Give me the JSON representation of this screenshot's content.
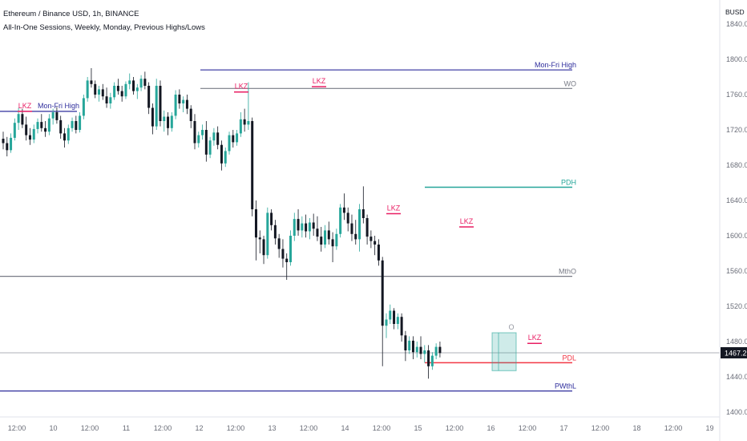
{
  "header": {
    "title": "Ethereum / Binance USD, 1h, BINANCE",
    "indicator": "All-In-One Sessions, Weekly, Monday, Previous Highs/Lows"
  },
  "axis": {
    "currency": "BUSD"
  },
  "colors": {
    "up": "#26a69a",
    "down": "#131722",
    "lkz": "#e91e63",
    "pdh": "#26a69a",
    "pdl": "#f23645",
    "purple": "#2e2d9c",
    "gray": "#787b86"
  },
  "chart_data": {
    "type": "candlestick",
    "ylim": [
      1400,
      1840
    ],
    "y_ticks": [
      1400,
      1440,
      1480,
      1520,
      1560,
      1600,
      1640,
      1680,
      1720,
      1760,
      1800,
      1840
    ],
    "x_ticks": [
      "12:00",
      "10",
      "12:00",
      "11",
      "12:00",
      "12",
      "12:00",
      "13",
      "12:00",
      "14",
      "12:00",
      "15",
      "12:00",
      "16",
      "12:00",
      "17",
      "12:00",
      "18",
      "12:00",
      "19"
    ],
    "current_price": 1467.29,
    "current_price_label": "1467.29",
    "levels": [
      {
        "label": "Mon-Fri High",
        "price": 1788,
        "color": "#2e2d9c"
      },
      {
        "label": "WO",
        "price": 1767,
        "color": "#787b86"
      },
      {
        "label": "PDH",
        "price": 1655,
        "color": "#26a69a"
      },
      {
        "label": "MthO",
        "price": 1554,
        "color": "#787b86"
      },
      {
        "label": "PDL",
        "price": 1456,
        "color": "#f23645"
      },
      {
        "label": "PWthL",
        "price": 1424,
        "color": "#2e2d9c"
      }
    ],
    "left_level_label": "Mon-Fri High",
    "left_level_price": 1741,
    "lkz_markers": [
      {
        "label": "LKZ",
        "price": 1741
      },
      {
        "label": "LKZ",
        "price": 1763
      },
      {
        "label": "LKZ",
        "price": 1769
      },
      {
        "label": "LKZ",
        "price": 1625
      },
      {
        "label": "LKZ",
        "price": 1610
      },
      {
        "label": "LKZ",
        "price": 1478
      }
    ],
    "session_box": {
      "label": "O",
      "high": 1490,
      "low": 1447
    },
    "candles": [
      [
        1710,
        1718,
        1698,
        1705
      ],
      [
        1705,
        1712,
        1690,
        1697
      ],
      [
        1697,
        1716,
        1694,
        1711
      ],
      [
        1711,
        1733,
        1708,
        1728
      ],
      [
        1728,
        1745,
        1720,
        1738
      ],
      [
        1738,
        1744,
        1722,
        1726
      ],
      [
        1726,
        1735,
        1708,
        1714
      ],
      [
        1714,
        1722,
        1703,
        1709
      ],
      [
        1709,
        1726,
        1705,
        1721
      ],
      [
        1721,
        1733,
        1716,
        1729
      ],
      [
        1729,
        1738,
        1718,
        1722
      ],
      [
        1722,
        1730,
        1712,
        1718
      ],
      [
        1718,
        1738,
        1714,
        1733
      ],
      [
        1733,
        1744,
        1726,
        1740
      ],
      [
        1740,
        1746,
        1727,
        1731
      ],
      [
        1731,
        1736,
        1710,
        1716
      ],
      [
        1716,
        1722,
        1700,
        1708
      ],
      [
        1708,
        1726,
        1704,
        1722
      ],
      [
        1722,
        1734,
        1718,
        1730
      ],
      [
        1730,
        1736,
        1716,
        1720
      ],
      [
        1720,
        1740,
        1717,
        1736
      ],
      [
        1736,
        1760,
        1732,
        1756
      ],
      [
        1756,
        1780,
        1752,
        1776
      ],
      [
        1776,
        1790,
        1768,
        1772
      ],
      [
        1772,
        1776,
        1756,
        1760
      ],
      [
        1760,
        1770,
        1752,
        1766
      ],
      [
        1766,
        1772,
        1754,
        1758
      ],
      [
        1758,
        1768,
        1745,
        1750
      ],
      [
        1750,
        1762,
        1744,
        1757
      ],
      [
        1757,
        1774,
        1754,
        1770
      ],
      [
        1770,
        1778,
        1760,
        1764
      ],
      [
        1764,
        1770,
        1752,
        1758
      ],
      [
        1758,
        1775,
        1755,
        1772
      ],
      [
        1772,
        1784,
        1766,
        1776
      ],
      [
        1776,
        1780,
        1760,
        1764
      ],
      [
        1764,
        1772,
        1755,
        1768
      ],
      [
        1768,
        1782,
        1764,
        1778
      ],
      [
        1778,
        1786,
        1766,
        1770
      ],
      [
        1770,
        1774,
        1738,
        1745
      ],
      [
        1745,
        1750,
        1715,
        1724
      ],
      [
        1724,
        1778,
        1720,
        1770
      ],
      [
        1770,
        1776,
        1724,
        1730
      ],
      [
        1730,
        1742,
        1718,
        1735
      ],
      [
        1735,
        1740,
        1714,
        1722
      ],
      [
        1722,
        1740,
        1718,
        1736
      ],
      [
        1736,
        1765,
        1732,
        1760
      ],
      [
        1760,
        1766,
        1744,
        1750
      ],
      [
        1750,
        1758,
        1740,
        1754
      ],
      [
        1754,
        1760,
        1738,
        1744
      ],
      [
        1744,
        1748,
        1722,
        1730
      ],
      [
        1730,
        1738,
        1698,
        1705
      ],
      [
        1705,
        1718,
        1700,
        1714
      ],
      [
        1714,
        1726,
        1709,
        1720
      ],
      [
        1720,
        1730,
        1684,
        1692
      ],
      [
        1692,
        1712,
        1688,
        1708
      ],
      [
        1708,
        1722,
        1702,
        1717
      ],
      [
        1717,
        1724,
        1698,
        1703
      ],
      [
        1703,
        1708,
        1674,
        1682
      ],
      [
        1682,
        1700,
        1678,
        1696
      ],
      [
        1696,
        1718,
        1692,
        1714
      ],
      [
        1714,
        1720,
        1700,
        1706
      ],
      [
        1706,
        1720,
        1702,
        1716
      ],
      [
        1716,
        1740,
        1712,
        1732
      ],
      [
        1732,
        1744,
        1718,
        1726
      ],
      [
        1726,
        1774,
        1720,
        1730
      ],
      [
        1730,
        1734,
        1622,
        1630
      ],
      [
        1630,
        1640,
        1572,
        1598
      ],
      [
        1598,
        1606,
        1580,
        1596
      ],
      [
        1596,
        1600,
        1568,
        1578
      ],
      [
        1578,
        1632,
        1574,
        1626
      ],
      [
        1626,
        1630,
        1606,
        1612
      ],
      [
        1612,
        1618,
        1590,
        1597
      ],
      [
        1597,
        1602,
        1575,
        1585
      ],
      [
        1585,
        1596,
        1564,
        1574
      ],
      [
        1574,
        1580,
        1550,
        1570
      ],
      [
        1570,
        1606,
        1566,
        1600
      ],
      [
        1600,
        1626,
        1594,
        1619
      ],
      [
        1619,
        1630,
        1600,
        1606
      ],
      [
        1606,
        1622,
        1598,
        1614
      ],
      [
        1614,
        1624,
        1598,
        1605
      ],
      [
        1605,
        1620,
        1596,
        1615
      ],
      [
        1615,
        1625,
        1600,
        1608
      ],
      [
        1608,
        1622,
        1594,
        1599
      ],
      [
        1599,
        1610,
        1582,
        1590
      ],
      [
        1590,
        1612,
        1586,
        1606
      ],
      [
        1606,
        1616,
        1590,
        1596
      ],
      [
        1596,
        1604,
        1570,
        1588
      ],
      [
        1588,
        1608,
        1584,
        1602
      ],
      [
        1602,
        1636,
        1598,
        1632
      ],
      [
        1632,
        1648,
        1618,
        1626
      ],
      [
        1626,
        1632,
        1605,
        1614
      ],
      [
        1614,
        1624,
        1594,
        1602
      ],
      [
        1602,
        1618,
        1590,
        1596
      ],
      [
        1596,
        1636,
        1582,
        1630
      ],
      [
        1630,
        1656,
        1614,
        1620
      ],
      [
        1620,
        1624,
        1590,
        1599
      ],
      [
        1599,
        1606,
        1586,
        1594
      ],
      [
        1594,
        1600,
        1578,
        1590
      ],
      [
        1590,
        1596,
        1566,
        1572
      ],
      [
        1572,
        1576,
        1452,
        1498
      ],
      [
        1498,
        1512,
        1484,
        1505
      ],
      [
        1505,
        1522,
        1500,
        1515
      ],
      [
        1515,
        1518,
        1494,
        1500
      ],
      [
        1500,
        1512,
        1494,
        1508
      ],
      [
        1508,
        1512,
        1480,
        1487
      ],
      [
        1487,
        1492,
        1458,
        1470
      ],
      [
        1470,
        1486,
        1466,
        1481
      ],
      [
        1481,
        1486,
        1460,
        1468
      ],
      [
        1468,
        1480,
        1462,
        1474
      ],
      [
        1474,
        1486,
        1460,
        1466
      ],
      [
        1466,
        1476,
        1456,
        1470
      ],
      [
        1470,
        1476,
        1438,
        1452
      ],
      [
        1452,
        1468,
        1448,
        1464
      ],
      [
        1464,
        1478,
        1460,
        1474
      ],
      [
        1474,
        1480,
        1462,
        1467
      ]
    ]
  }
}
